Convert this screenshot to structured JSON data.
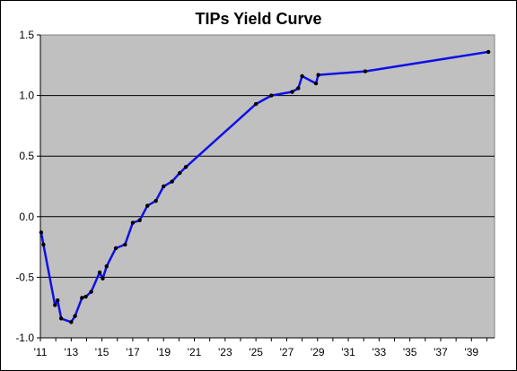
{
  "chart_data": {
    "type": "line",
    "title": "TIPs Yield Curve",
    "xlabel": "",
    "ylabel": "",
    "xlim": [
      2011,
      2040.5
    ],
    "ylim": [
      -1.0,
      1.5
    ],
    "x_tick_labels": [
      "'11",
      "'13",
      "'15",
      "'17",
      "'19",
      "'21",
      "'23",
      "'25",
      "'27",
      "'29",
      "'31",
      "'33",
      "'35",
      "'37",
      "'39"
    ],
    "x_tick_values": [
      2011,
      2013,
      2015,
      2017,
      2019,
      2021,
      2023,
      2025,
      2027,
      2029,
      2031,
      2033,
      2035,
      2037,
      2039
    ],
    "y_tick_labels": [
      "1.5",
      "1.0",
      "0.5",
      "0.0",
      "-0.5",
      "-1.0"
    ],
    "y_tick_values": [
      1.5,
      1.0,
      0.5,
      0.0,
      -0.5,
      -1.0
    ],
    "grid": true,
    "legend": "none",
    "colors": {
      "line": "#1010e8",
      "marker": "#000000",
      "plot_background": "#c0c0c0",
      "gridline": "#000000"
    },
    "series": [
      {
        "x": [
          2011.05,
          2011.2,
          2011.95,
          2012.12,
          2012.35,
          2013.0,
          2013.25,
          2013.7,
          2013.95,
          2014.3,
          2014.85,
          2015.05,
          2015.3,
          2015.9,
          2016.5,
          2017.0,
          2017.45,
          2017.95,
          2018.5,
          2019.0,
          2019.55,
          2020.05,
          2020.45,
          2025.0,
          2026.0,
          2027.35,
          2027.75,
          2028.0,
          2028.9,
          2029.05,
          2032.1,
          2040.1
        ],
        "y": [
          -0.13,
          -0.23,
          -0.73,
          -0.69,
          -0.84,
          -0.87,
          -0.82,
          -0.67,
          -0.66,
          -0.62,
          -0.46,
          -0.51,
          -0.41,
          -0.26,
          -0.23,
          -0.05,
          -0.03,
          0.09,
          0.13,
          0.25,
          0.29,
          0.36,
          0.41,
          0.93,
          1.0,
          1.03,
          1.06,
          1.16,
          1.1,
          1.17,
          1.2,
          1.36
        ]
      }
    ]
  }
}
